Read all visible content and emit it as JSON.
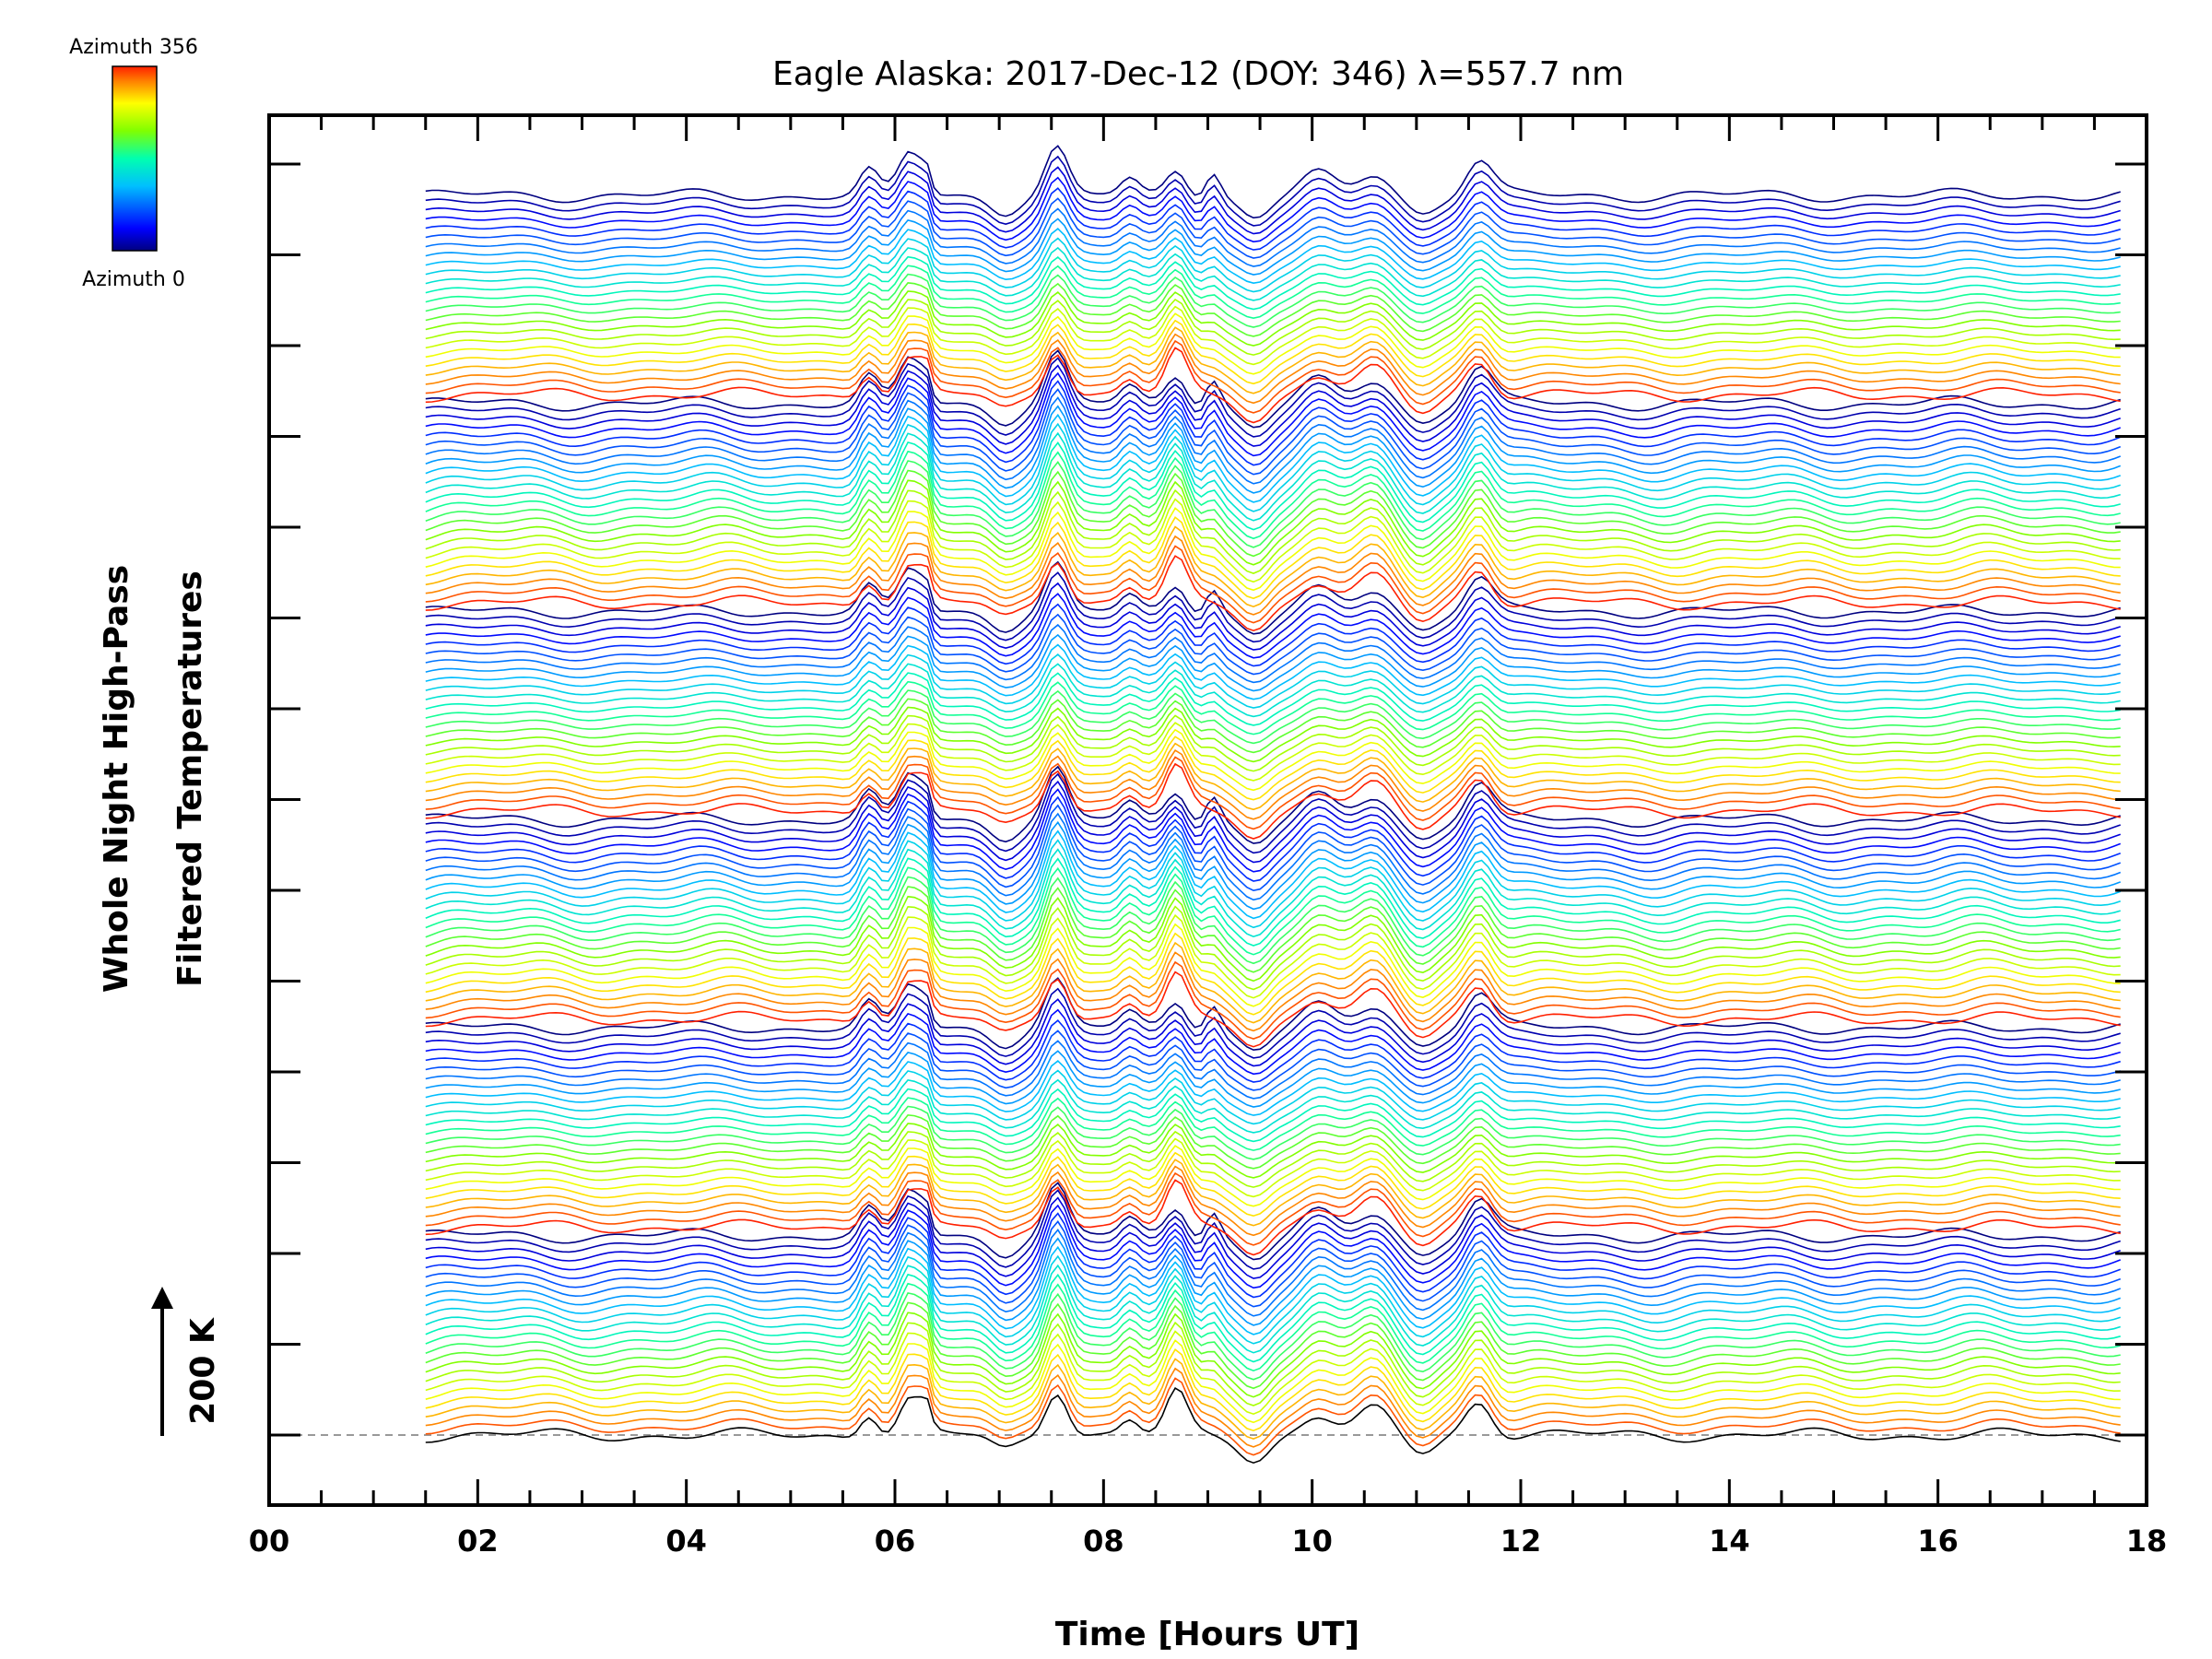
{
  "chart_data": {
    "type": "line",
    "title": "Eagle Alaska: 2017-Dec-12 (DOY: 346) λ=557.7 nm",
    "xlabel": "Time [Hours UT]",
    "ylabel_line1": "Whole Night High-Pass",
    "ylabel_line2": "Filtered Temperatures",
    "scale_label": "200 K",
    "xlim": [
      0,
      18
    ],
    "x_tick_labels": [
      "00",
      "02",
      "04",
      "06",
      "08",
      "10",
      "12",
      "14",
      "16",
      "18"
    ],
    "data_time_range": [
      1.5,
      17.75
    ],
    "series_count": 144,
    "azimuth_range": [
      0,
      356
    ],
    "colorbar": {
      "label_top": "Azimuth 356",
      "label_bottom": "Azimuth 0",
      "colors": [
        "#000080",
        "#0000ff",
        "#00bfff",
        "#00ffb0",
        "#80ff00",
        "#ffff00",
        "#ff8000",
        "#ff2000"
      ]
    },
    "grid": false,
    "baseline_dashed": true
  }
}
